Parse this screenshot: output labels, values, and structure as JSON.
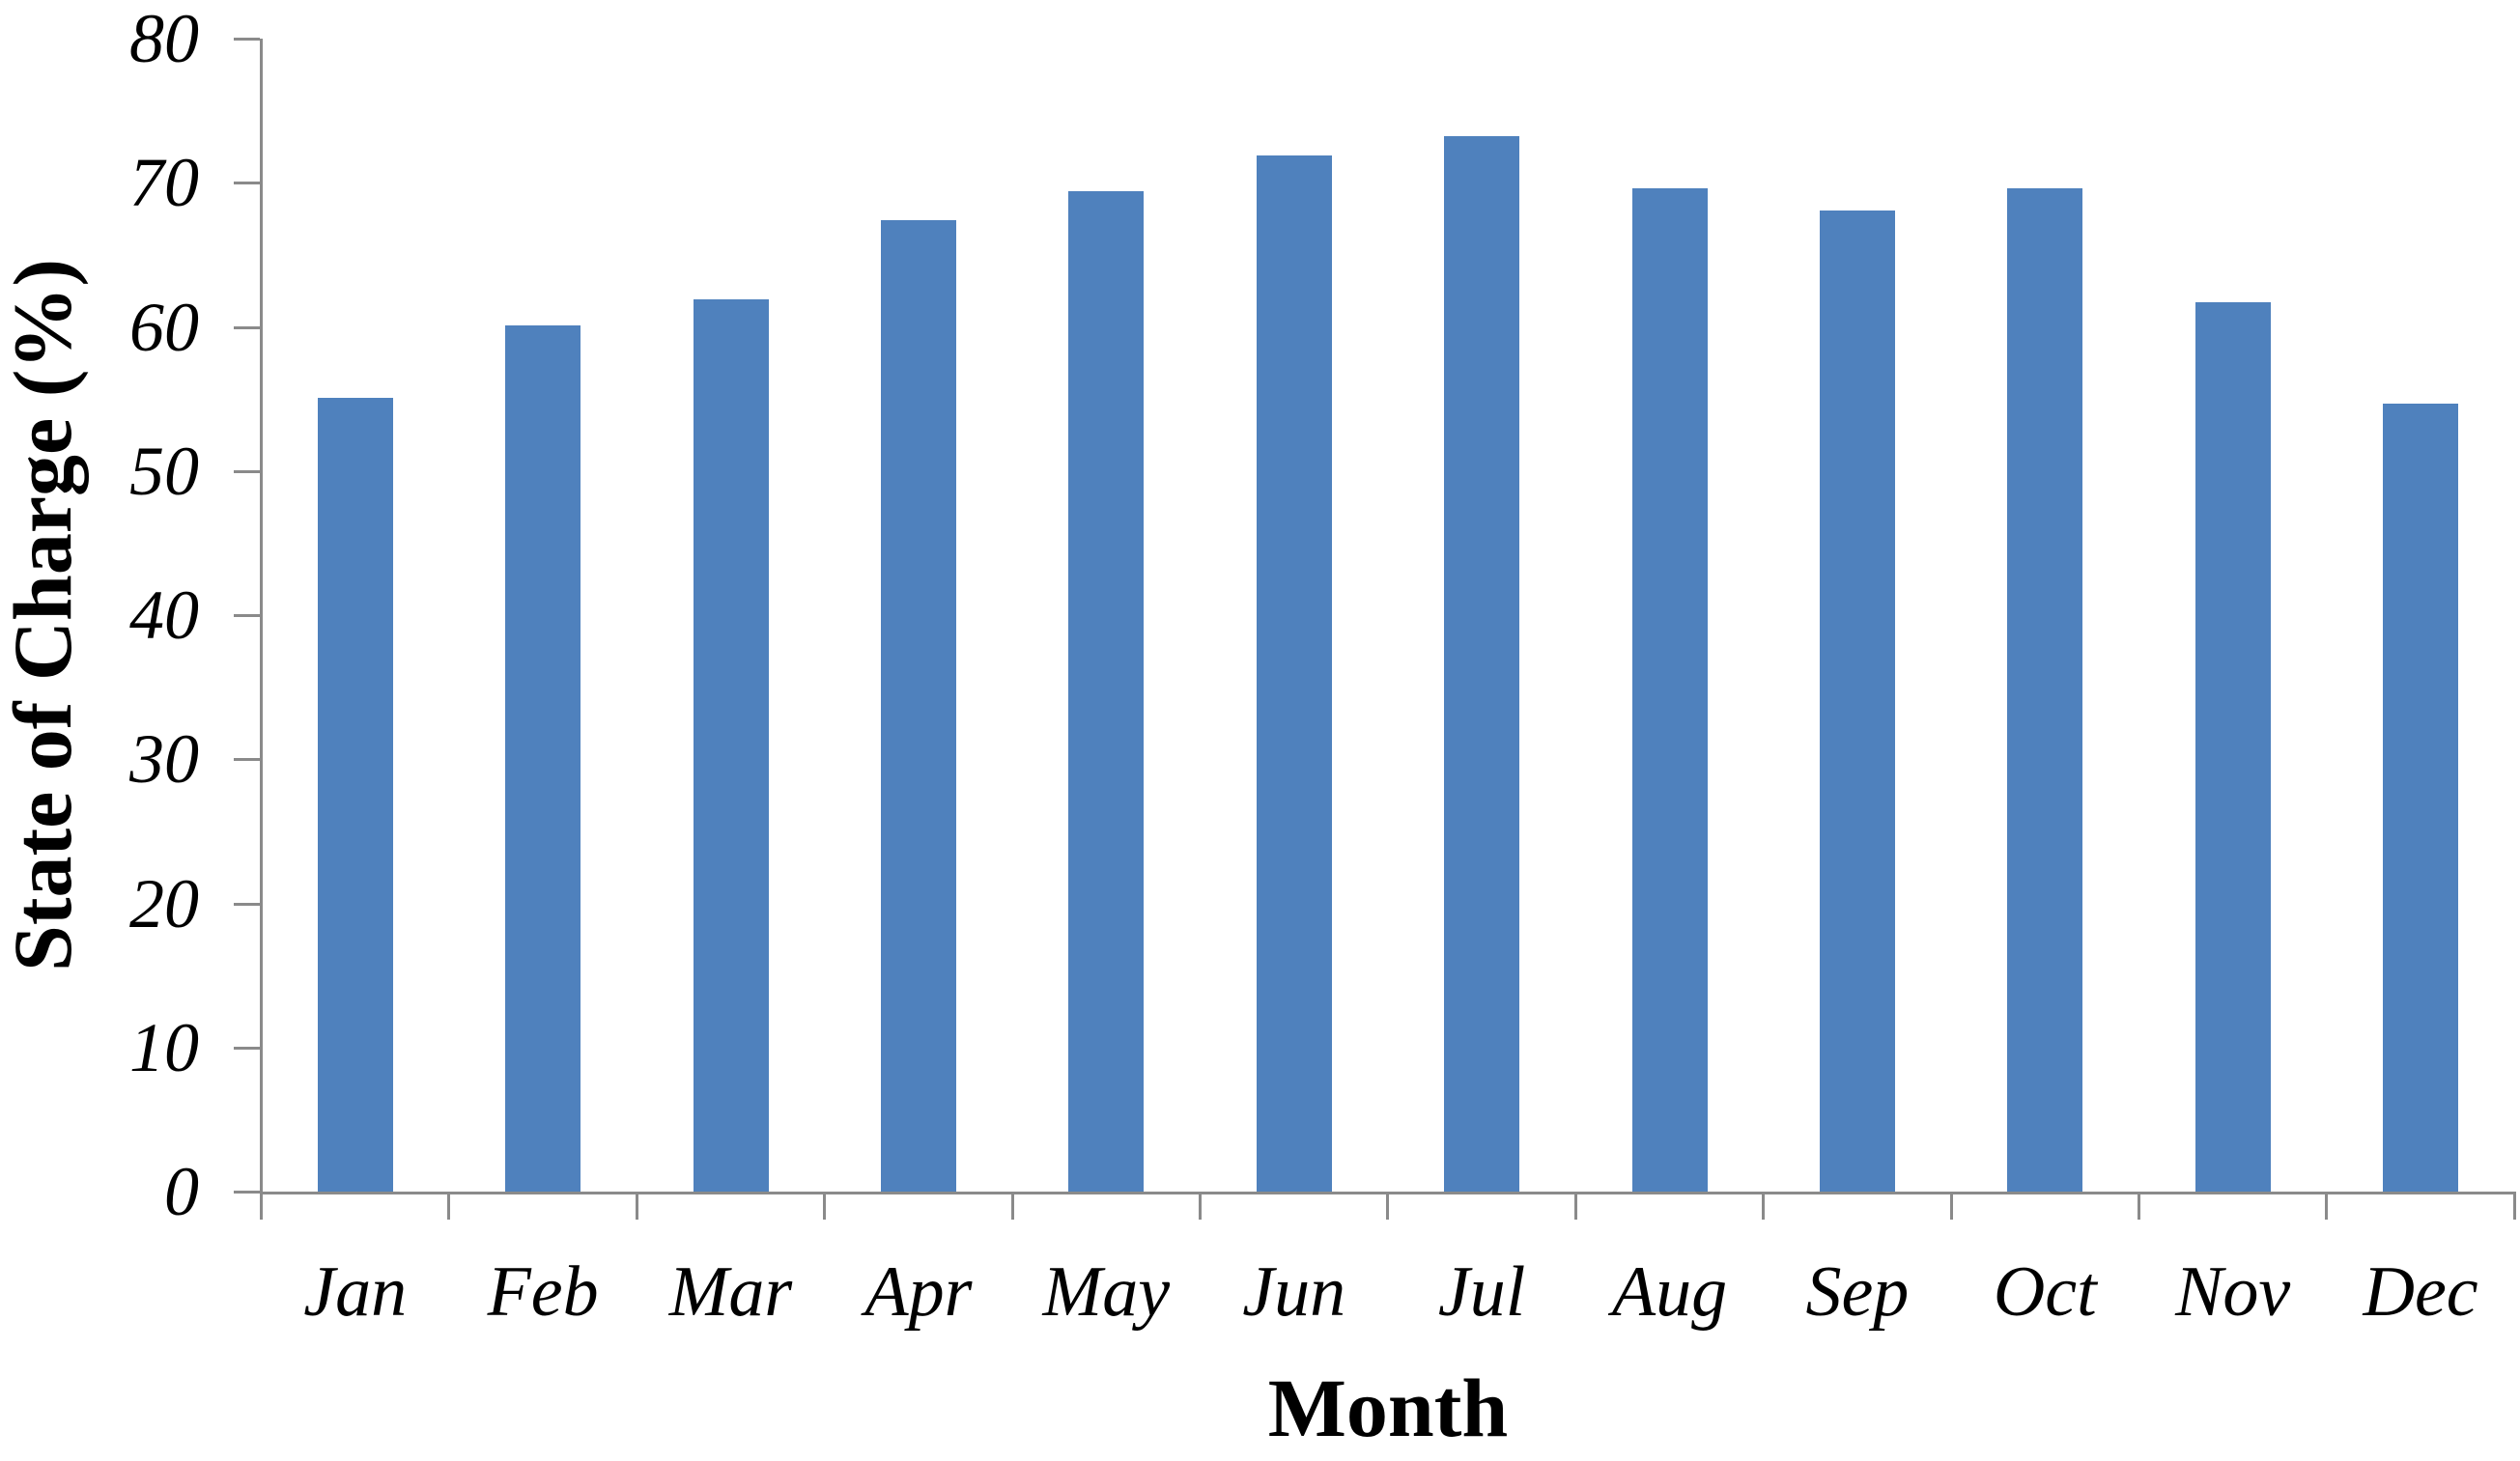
{
  "figure": {
    "background": "#ffffff"
  },
  "chart_data": {
    "type": "bar",
    "title": "",
    "xlabel": "Month",
    "ylabel": "State of Charge (%)",
    "categories": [
      "Jan",
      "Feb",
      "Mar",
      "Apr",
      "May",
      "Jun",
      "Jul",
      "Aug",
      "Sep",
      "Oct",
      "Nov",
      "Dec"
    ],
    "values": [
      55.1,
      60.1,
      61.9,
      67.4,
      69.4,
      71.9,
      73.2,
      69.6,
      68.1,
      69.6,
      61.7,
      54.7
    ],
    "ylim": [
      0,
      80
    ],
    "ytick_step": 10,
    "ytick_labels": [
      "0",
      "10",
      "20",
      "30",
      "40",
      "50",
      "60",
      "70",
      "80"
    ],
    "grid": false,
    "legend_position": "none",
    "colors": {
      "bar_fill": "#4f81bd",
      "axis": "#8a8a8a",
      "text": "#000000"
    }
  }
}
